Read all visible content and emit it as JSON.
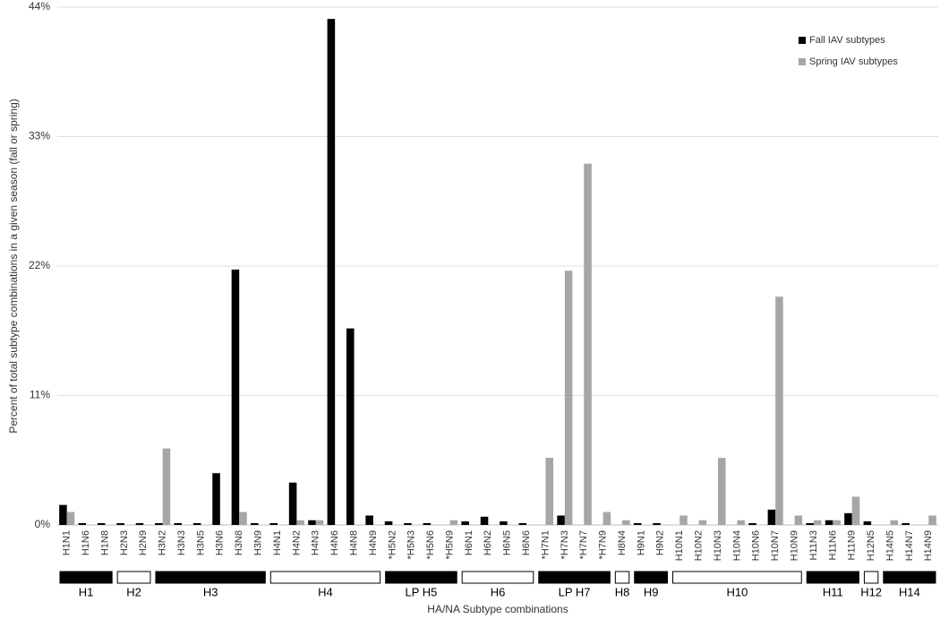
{
  "chart_data": {
    "type": "bar",
    "y_label": "Percent of total subtype combinations in a given  season (fall or spring)",
    "x_label": "HA/NA Subtype combinations",
    "categories": [
      "H1N1",
      "H1N6",
      "H1N8",
      "H2N3",
      "H2N9",
      "H3N2",
      "H3N3",
      "H3N5",
      "H3N6",
      "H3N8",
      "H3N9",
      "H4N1",
      "H4N2",
      "H4N3",
      "H4N6",
      "H4N8",
      "H4N9",
      "*H5N2",
      "*H5N3",
      "*H5N6",
      "*H5N9",
      "H6N1",
      "H6N2",
      "H6N5",
      "H6N6",
      "*H7N1",
      "*H7N3",
      "*H7N7",
      "*H7N9",
      "H8N4",
      "H9N1",
      "H9N2",
      "H10N1",
      "H10N2",
      "H10N3",
      "H10N4",
      "H10N6",
      "H10N7",
      "H10N9",
      "H11N3",
      "H11N6",
      "H11N9",
      "H12N5",
      "H14N5",
      "H14N7",
      "H14N9"
    ],
    "series": [
      {
        "name": "Fall IAV subtypes",
        "color": "#000000",
        "values": [
          1.7,
          0.15,
          0.15,
          0.15,
          0.15,
          0.15,
          0.15,
          0.15,
          4.4,
          21.7,
          0.15,
          0.15,
          3.6,
          0.4,
          43.0,
          16.7,
          0.8,
          0.3,
          0.15,
          0.15,
          0,
          0.3,
          0.7,
          0.3,
          0.15,
          0,
          0.8,
          0,
          0,
          0,
          0.15,
          0.15,
          0,
          0,
          0,
          0,
          0.15,
          1.3,
          0,
          0.15,
          0.4,
          1.0,
          0.3,
          0,
          0.15,
          0
        ]
      },
      {
        "name": "Spring IAV subtypes",
        "color": "#a6a6a6",
        "values": [
          1.1,
          0,
          0,
          0,
          0,
          6.5,
          0,
          0,
          0,
          1.1,
          0,
          0,
          0.4,
          0.4,
          0,
          0,
          0,
          0,
          0,
          0,
          0.4,
          0,
          0,
          0,
          0,
          5.7,
          21.6,
          30.7,
          1.1,
          0.4,
          0,
          0,
          0.8,
          0.4,
          5.7,
          0.4,
          0,
          19.4,
          0.8,
          0.4,
          0.4,
          2.4,
          0,
          0.4,
          0,
          0.8
        ]
      }
    ],
    "groups": [
      {
        "label": "H1",
        "count": 3,
        "filled": true
      },
      {
        "label": "H2",
        "count": 2,
        "filled": false
      },
      {
        "label": "H3",
        "count": 6,
        "filled": true
      },
      {
        "label": "H4",
        "count": 6,
        "filled": false
      },
      {
        "label": "LP H5",
        "count": 4,
        "filled": true
      },
      {
        "label": "H6",
        "count": 4,
        "filled": false
      },
      {
        "label": "LP H7",
        "count": 4,
        "filled": true
      },
      {
        "label": "H8",
        "count": 1,
        "filled": false
      },
      {
        "label": "H9",
        "count": 2,
        "filled": true
      },
      {
        "label": "H10",
        "count": 7,
        "filled": false
      },
      {
        "label": "H11",
        "count": 3,
        "filled": true
      },
      {
        "label": "H12",
        "count": 1,
        "filled": false
      },
      {
        "label": "H14",
        "count": 3,
        "filled": true
      }
    ],
    "ylim": [
      0,
      44
    ],
    "yticks": [
      {
        "value": 0,
        "label": "0%"
      },
      {
        "value": 11,
        "label": "11%"
      },
      {
        "value": 22,
        "label": "22%"
      },
      {
        "value": 33,
        "label": "33%"
      },
      {
        "value": 44,
        "label": "44%"
      }
    ],
    "grid": true,
    "legend": "top-right"
  }
}
